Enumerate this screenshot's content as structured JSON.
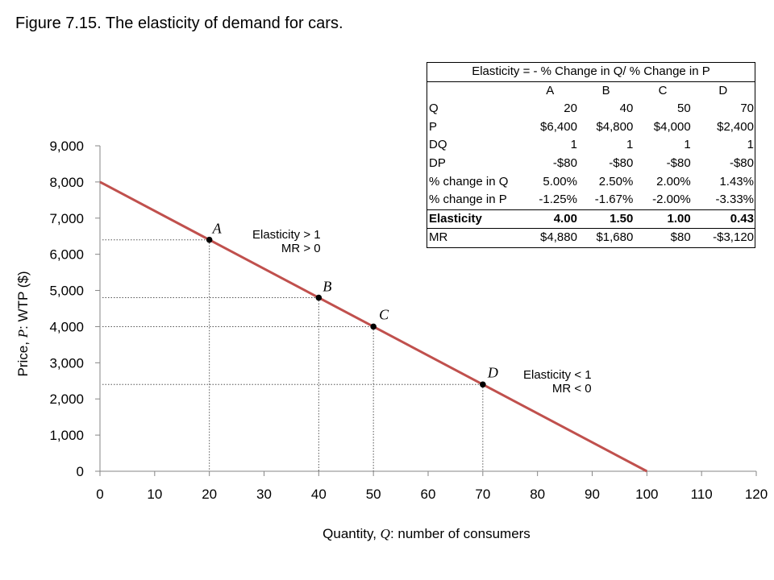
{
  "figure_title": "Figure 7.15. The elasticity of demand for cars.",
  "chart_data": {
    "type": "line",
    "xlabel_plain": "Quantity, ",
    "xlabel_var": "Q",
    "xlabel_rest": ": number of consumers",
    "ylabel_plain": "Price, ",
    "ylabel_var": "P",
    "ylabel_rest": ": WTP ($)",
    "xlim": [
      0,
      120
    ],
    "ylim": [
      0,
      9000
    ],
    "x_ticks": [
      "0",
      "10",
      "20",
      "30",
      "40",
      "50",
      "60",
      "70",
      "80",
      "90",
      "100",
      "110",
      "120"
    ],
    "y_ticks": [
      "0",
      "1,000",
      "2,000",
      "3,000",
      "4,000",
      "5,000",
      "6,000",
      "7,000",
      "8,000",
      "9,000"
    ],
    "grid": false,
    "legend": "none",
    "line_color": "#c0504d",
    "demand_line": {
      "x": [
        0,
        100
      ],
      "y": [
        8000,
        0
      ]
    },
    "points": [
      {
        "label": "A",
        "x": 20,
        "y": 6400
      },
      {
        "label": "B",
        "x": 40,
        "y": 4800
      },
      {
        "label": "C",
        "x": 50,
        "y": 4000
      },
      {
        "label": "D",
        "x": 70,
        "y": 2400
      }
    ]
  },
  "annotations": {
    "elastic_line1": "Elasticity > 1",
    "elastic_line2": "MR > 0",
    "inelastic_line1": "Elasticity < 1",
    "inelastic_line2": "MR < 0"
  },
  "table": {
    "title": "Elasticity = - % Change in Q/ % Change in P",
    "columns": [
      "A",
      "B",
      "C",
      "D"
    ],
    "rows": [
      {
        "label": "Q",
        "values": [
          "20",
          "40",
          "50",
          "70"
        ]
      },
      {
        "label": "P",
        "values": [
          "$6,400",
          "$4,800",
          "$4,000",
          "$2,400"
        ]
      },
      {
        "label": "DQ",
        "values": [
          "1",
          "1",
          "1",
          "1"
        ]
      },
      {
        "label": "DP",
        "values": [
          "-$80",
          "-$80",
          "-$80",
          "-$80"
        ]
      },
      {
        "label": "% change in Q",
        "values": [
          "5.00%",
          "2.50%",
          "2.00%",
          "1.43%"
        ]
      },
      {
        "label": "% change in P",
        "values": [
          "-1.25%",
          "-1.67%",
          "-2.00%",
          "-3.33%"
        ]
      },
      {
        "label": "Elasticity",
        "values": [
          "4.00",
          "1.50",
          "1.00",
          "0.43"
        ]
      },
      {
        "label": "MR",
        "values": [
          "$4,880",
          "$1,680",
          "$80",
          "-$3,120"
        ]
      }
    ]
  }
}
